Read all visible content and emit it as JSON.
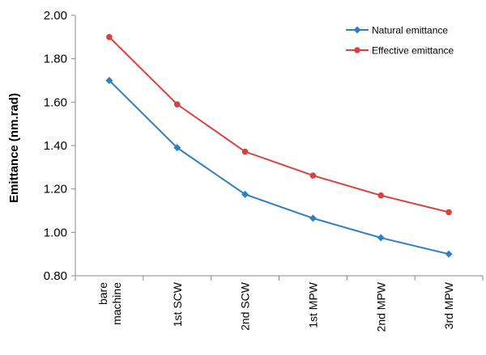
{
  "chart_data": {
    "type": "line",
    "title": "",
    "xlabel": "",
    "ylabel": "Emittance (nm.rad)",
    "categories": [
      "bare machine",
      "1st SCW",
      "2nd SCW",
      "1st MPW",
      "2nd MPW",
      "3rd MPW"
    ],
    "ylim": [
      0.8,
      2.0
    ],
    "yticks": [
      "0.80",
      "1.00",
      "1.20",
      "1.40",
      "1.60",
      "1.80",
      "2.00"
    ],
    "grid": false,
    "legend_position": "top-right",
    "series": [
      {
        "name": "Natural emittance",
        "color": "#2e7fc0",
        "marker": "diamond",
        "values": [
          1.7,
          1.39,
          1.175,
          1.065,
          0.975,
          0.9
        ]
      },
      {
        "name": "Effective emittance",
        "color": "#d9403f",
        "marker": "circle",
        "values": [
          1.9,
          1.59,
          1.372,
          1.262,
          1.17,
          1.093
        ]
      }
    ]
  }
}
